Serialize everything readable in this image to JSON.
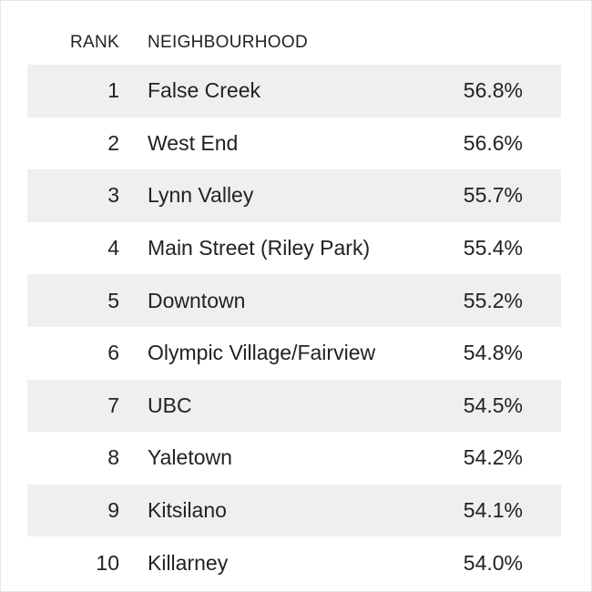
{
  "table": {
    "headers": {
      "rank": "RANK",
      "neighbourhood": "NEIGHBOURHOOD"
    },
    "rows": [
      {
        "rank": "1",
        "neighbourhood": "False Creek",
        "value": "56.8%"
      },
      {
        "rank": "2",
        "neighbourhood": "West End",
        "value": "56.6%"
      },
      {
        "rank": "3",
        "neighbourhood": "Lynn Valley",
        "value": "55.7%"
      },
      {
        "rank": "4",
        "neighbourhood": "Main Street (Riley Park)",
        "value": "55.4%"
      },
      {
        "rank": "5",
        "neighbourhood": "Downtown",
        "value": "55.2%"
      },
      {
        "rank": "6",
        "neighbourhood": "Olympic Village/Fairview",
        "value": "54.8%"
      },
      {
        "rank": "7",
        "neighbourhood": "UBC",
        "value": "54.5%"
      },
      {
        "rank": "8",
        "neighbourhood": "Yaletown",
        "value": "54.2%"
      },
      {
        "rank": "9",
        "neighbourhood": "Kitsilano",
        "value": "54.1%"
      },
      {
        "rank": "10",
        "neighbourhood": "Killarney",
        "value": "54.0%"
      }
    ]
  },
  "colors": {
    "stripe": "#efefef",
    "text": "#222222"
  }
}
